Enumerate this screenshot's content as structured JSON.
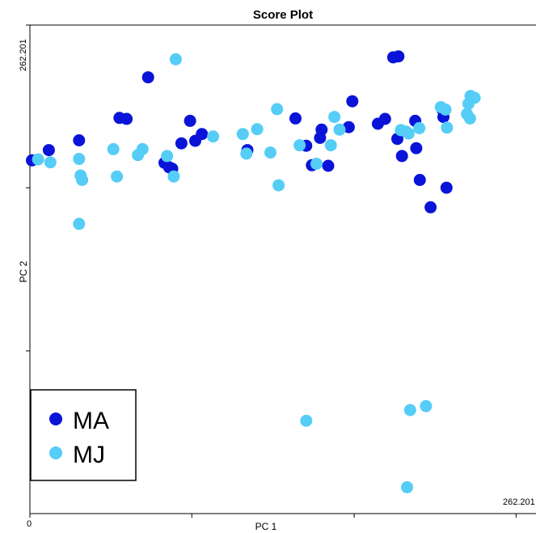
{
  "chart_data": {
    "type": "scatter",
    "title": "Score Plot",
    "xlabel": "PC 1",
    "ylabel": "PC 2",
    "x_tick_labels": {
      "min": "0",
      "max": "262.201"
    },
    "y_tick_labels": {
      "max": "262.201"
    },
    "xlim": [
      0,
      1
    ],
    "ylim": [
      0,
      1
    ],
    "legend_position": "bottom-left",
    "series": [
      {
        "name": "MA",
        "color": "#0a14d8",
        "points": [
          [
            0.004,
            0.723
          ],
          [
            0.037,
            0.744
          ],
          [
            0.096,
            0.764
          ],
          [
            0.175,
            0.81
          ],
          [
            0.189,
            0.808
          ],
          [
            0.231,
            0.893
          ],
          [
            0.263,
            0.718
          ],
          [
            0.278,
            0.706
          ],
          [
            0.272,
            0.709
          ],
          [
            0.296,
            0.758
          ],
          [
            0.313,
            0.804
          ],
          [
            0.323,
            0.763
          ],
          [
            0.336,
            0.777
          ],
          [
            0.425,
            0.744
          ],
          [
            0.519,
            0.809
          ],
          [
            0.54,
            0.753
          ],
          [
            0.551,
            0.713
          ],
          [
            0.567,
            0.769
          ],
          [
            0.57,
            0.786
          ],
          [
            0.583,
            0.712
          ],
          [
            0.623,
            0.791
          ],
          [
            0.63,
            0.844
          ],
          [
            0.68,
            0.798
          ],
          [
            0.694,
            0.808
          ],
          [
            0.71,
            0.934
          ],
          [
            0.72,
            0.936
          ],
          [
            0.718,
            0.767
          ],
          [
            0.727,
            0.732
          ],
          [
            0.753,
            0.804
          ],
          [
            0.755,
            0.748
          ],
          [
            0.762,
            0.683
          ],
          [
            0.783,
            0.627
          ],
          [
            0.806,
            0.827
          ],
          [
            0.808,
            0.812
          ],
          [
            0.814,
            0.667
          ]
        ]
      },
      {
        "name": "MJ",
        "color": "#55cdf7",
        "points": [
          [
            0.016,
            0.725
          ],
          [
            0.04,
            0.719
          ],
          [
            0.096,
            0.726
          ],
          [
            0.099,
            0.692
          ],
          [
            0.102,
            0.683
          ],
          [
            0.096,
            0.593
          ],
          [
            0.163,
            0.746
          ],
          [
            0.17,
            0.69
          ],
          [
            0.211,
            0.734
          ],
          [
            0.22,
            0.746
          ],
          [
            0.285,
            0.93
          ],
          [
            0.268,
            0.732
          ],
          [
            0.281,
            0.69
          ],
          [
            0.358,
            0.772
          ],
          [
            0.416,
            0.777
          ],
          [
            0.423,
            0.737
          ],
          [
            0.444,
            0.787
          ],
          [
            0.47,
            0.739
          ],
          [
            0.483,
            0.828
          ],
          [
            0.486,
            0.672
          ],
          [
            0.527,
            0.754
          ],
          [
            0.56,
            0.716
          ],
          [
            0.588,
            0.754
          ],
          [
            0.595,
            0.812
          ],
          [
            0.605,
            0.786
          ],
          [
            0.725,
            0.785
          ],
          [
            0.735,
            0.782
          ],
          [
            0.74,
            0.778
          ],
          [
            0.761,
            0.789
          ],
          [
            0.803,
            0.832
          ],
          [
            0.812,
            0.827
          ],
          [
            0.857,
            0.839
          ],
          [
            0.86,
            0.809
          ],
          [
            0.861,
            0.855
          ],
          [
            0.869,
            0.851
          ],
          [
            0.854,
            0.818
          ],
          [
            0.815,
            0.79
          ],
          [
            0.54,
            0.19
          ],
          [
            0.743,
            0.212
          ],
          [
            0.774,
            0.22
          ],
          [
            0.737,
            0.054
          ]
        ]
      }
    ]
  },
  "legend": {
    "items": [
      {
        "label": "MA",
        "color": "#0a14d8"
      },
      {
        "label": "MJ",
        "color": "#55cdf7"
      }
    ]
  }
}
